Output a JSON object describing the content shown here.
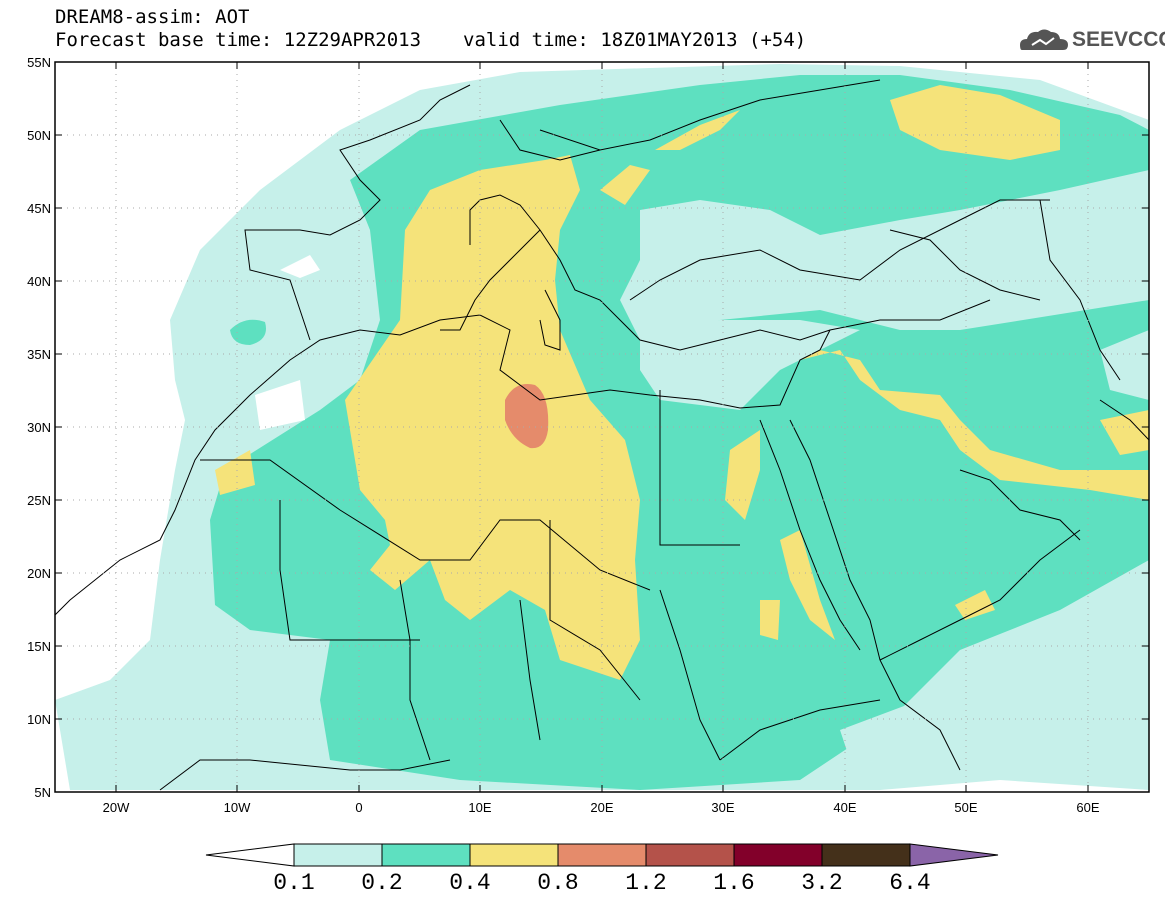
{
  "header": {
    "line1": "DREAM8-assim: AOT",
    "base_time": "Forecast base time: 12Z29APR2013",
    "valid_time": "valid time: 18Z01MAY2013 (+54)"
  },
  "logo": {
    "icon": "cloud-icon",
    "text": "SEEVCCC"
  },
  "map": {
    "lat_labels": [
      "55N",
      "50N",
      "45N",
      "40N",
      "35N",
      "30N",
      "25N",
      "20N",
      "15N",
      "10N",
      "5N"
    ],
    "lon_labels": [
      "20W",
      "10W",
      "0",
      "10E",
      "20E",
      "30E",
      "40E",
      "50E",
      "60E"
    ],
    "extent": {
      "lon_min": -25,
      "lon_max": 65,
      "lat_min": 5,
      "lat_max": 55
    },
    "grid": "dotted",
    "field": "AOT"
  },
  "colorbar": {
    "labels": [
      "0.1",
      "0.2",
      "0.4",
      "0.8",
      "1.2",
      "1.6",
      "3.2",
      "6.4"
    ],
    "colors": [
      "#ffffff",
      "#c6f0ea",
      "#5ee0c0",
      "#f5e37a",
      "#e58b6b",
      "#b4524a",
      "#82002a",
      "#44301a",
      "#8a64a8"
    ]
  }
}
